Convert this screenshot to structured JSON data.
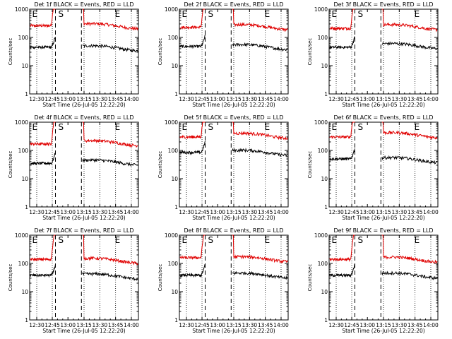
{
  "chart_data": [
    {
      "type": "line",
      "title": "Det 1f BLACK = Events, RED = LLD",
      "xlabel": "Start Time (26-Jul-05 12:22:20)",
      "ylabel": "Counts/sec",
      "yscale": "log",
      "ylim": [
        1,
        1000
      ],
      "x_ticks": [
        "12:30",
        "12:45",
        "13:00",
        "13:15",
        "13:30",
        "13:45",
        "14:00"
      ],
      "y_ticks": [
        "1",
        "10",
        "100",
        "1000"
      ],
      "markers": [
        "E",
        "S",
        "E"
      ],
      "series": [
        {
          "name": "RED = LLD",
          "color": "#e00000",
          "level_before": 260,
          "level_after": 300
        },
        {
          "name": "BLACK = Events",
          "color": "#000000",
          "level_before": 45,
          "level_after": 50
        }
      ]
    },
    {
      "type": "line",
      "title": "Det 2f BLACK = Events, RED = LLD",
      "xlabel": "Start Time (26-Jul-05 12:22:20)",
      "ylabel": "Counts/sec",
      "yscale": "log",
      "ylim": [
        1,
        1000
      ],
      "x_ticks": [
        "12:30",
        "12:45",
        "13:00",
        "13:15",
        "13:30",
        "13:45",
        "14:00"
      ],
      "y_ticks": [
        "1",
        "10",
        "100",
        "1000"
      ],
      "markers": [
        "E",
        "S",
        "E"
      ],
      "series": [
        {
          "name": "RED = LLD",
          "color": "#e00000",
          "level_before": 230,
          "level_after": 280
        },
        {
          "name": "BLACK = Events",
          "color": "#000000",
          "level_before": 48,
          "level_after": 55
        }
      ]
    },
    {
      "type": "line",
      "title": "Det 3f BLACK = Events, RED = LLD",
      "xlabel": "Start Time (26-Jul-05 12:22:20)",
      "ylabel": "Counts/sec",
      "yscale": "log",
      "ylim": [
        1,
        1000
      ],
      "x_ticks": [
        "12:30",
        "12:45",
        "13:00",
        "13:15",
        "13:30",
        "13:45",
        "14:00"
      ],
      "y_ticks": [
        "1",
        "10",
        "100",
        "1000"
      ],
      "markers": [
        "E",
        "S",
        "E"
      ],
      "series": [
        {
          "name": "RED = LLD",
          "color": "#e00000",
          "level_before": 210,
          "level_after": 280
        },
        {
          "name": "BLACK = Events",
          "color": "#000000",
          "level_before": 45,
          "level_after": 60
        }
      ]
    },
    {
      "type": "line",
      "title": "Det 4f BLACK = Events, RED = LLD",
      "xlabel": "Start Time (26-Jul-05 12:22:20)",
      "ylabel": "Counts/sec",
      "yscale": "log",
      "ylim": [
        1,
        1000
      ],
      "x_ticks": [
        "12:30",
        "12:45",
        "13:00",
        "13:15",
        "13:30",
        "13:45",
        "14:00"
      ],
      "y_ticks": [
        "1",
        "10",
        "100",
        "1000"
      ],
      "markers": [
        "E",
        "S",
        "E"
      ],
      "series": [
        {
          "name": "RED = LLD",
          "color": "#e00000",
          "level_before": 170,
          "level_after": 220
        },
        {
          "name": "BLACK = Events",
          "color": "#000000",
          "level_before": 35,
          "level_after": 45
        }
      ]
    },
    {
      "type": "line",
      "title": "Det 5f BLACK = Events, RED = LLD",
      "xlabel": "Start Time (26-Jul-05 12:22:20)",
      "ylabel": "Counts/sec",
      "yscale": "log",
      "ylim": [
        1,
        1000
      ],
      "x_ticks": [
        "12:30",
        "12:45",
        "13:00",
        "13:15",
        "13:30",
        "13:45",
        "14:00"
      ],
      "y_ticks": [
        "1",
        "10",
        "100",
        "1000"
      ],
      "markers": [
        "E",
        "S",
        "E"
      ],
      "series": [
        {
          "name": "RED = LLD",
          "color": "#e00000",
          "level_before": 300,
          "level_after": 400
        },
        {
          "name": "BLACK = Events",
          "color": "#000000",
          "level_before": 85,
          "level_after": 100
        }
      ]
    },
    {
      "type": "line",
      "title": "Det 6f BLACK = Events, RED = LLD",
      "xlabel": "Start Time (26-Jul-05 12:22:20)",
      "ylabel": "Counts/sec",
      "yscale": "log",
      "ylim": [
        1,
        1000
      ],
      "x_ticks": [
        "12:30",
        "12:45",
        "13:00",
        "13:15",
        "13:30",
        "13:45",
        "14:00"
      ],
      "y_ticks": [
        "1",
        "10",
        "100",
        "1000"
      ],
      "markers": [
        "E",
        "S",
        "E"
      ],
      "series": [
        {
          "name": "RED = LLD",
          "color": "#e00000",
          "level_before": 300,
          "level_after": 420
        },
        {
          "name": "BLACK = Events",
          "color": "#000000",
          "level_before": 50,
          "level_after": 55
        }
      ]
    },
    {
      "type": "line",
      "title": "Det 7f BLACK = Events, RED = LLD",
      "xlabel": "Start Time (26-Jul-05 12:22:20)",
      "ylabel": "Counts/sec",
      "yscale": "log",
      "ylim": [
        1,
        1000
      ],
      "x_ticks": [
        "12:30",
        "12:45",
        "13:00",
        "13:15",
        "13:30",
        "13:45",
        "14:00"
      ],
      "y_ticks": [
        "1",
        "10",
        "100",
        "1000"
      ],
      "markers": [
        "E",
        "S",
        "E"
      ],
      "series": [
        {
          "name": "RED = LLD",
          "color": "#e00000",
          "level_before": 140,
          "level_after": 150
        },
        {
          "name": "BLACK = Events",
          "color": "#000000",
          "level_before": 38,
          "level_after": 42
        }
      ]
    },
    {
      "type": "line",
      "title": "Det 8f BLACK = Events, RED = LLD",
      "xlabel": "Start Time (26-Jul-05 12:22:20)",
      "ylabel": "Counts/sec",
      "yscale": "log",
      "ylim": [
        1,
        1000
      ],
      "x_ticks": [
        "12:30",
        "12:45",
        "13:00",
        "13:15",
        "13:30",
        "13:45",
        "14:00"
      ],
      "y_ticks": [
        "1",
        "10",
        "100",
        "1000"
      ],
      "markers": [
        "E",
        "S",
        "E"
      ],
      "series": [
        {
          "name": "RED = LLD",
          "color": "#e00000",
          "level_before": 160,
          "level_after": 170
        },
        {
          "name": "BLACK = Events",
          "color": "#000000",
          "level_before": 38,
          "level_after": 45
        }
      ]
    },
    {
      "type": "line",
      "title": "Det 9f BLACK = Events, RED = LLD",
      "xlabel": "Start Time (26-Jul-05 12:22:20)",
      "ylabel": "Counts/sec",
      "yscale": "log",
      "ylim": [
        1,
        1000
      ],
      "x_ticks": [
        "12:30",
        "12:45",
        "13:00",
        "13:15",
        "13:30",
        "13:45",
        "14:00"
      ],
      "y_ticks": [
        "1",
        "10",
        "100",
        "1000"
      ],
      "markers": [
        "E",
        "S",
        "E"
      ],
      "series": [
        {
          "name": "RED = LLD",
          "color": "#e00000",
          "level_before": 140,
          "level_after": 165
        },
        {
          "name": "BLACK = Events",
          "color": "#000000",
          "level_before": 38,
          "level_after": 45
        }
      ]
    }
  ]
}
